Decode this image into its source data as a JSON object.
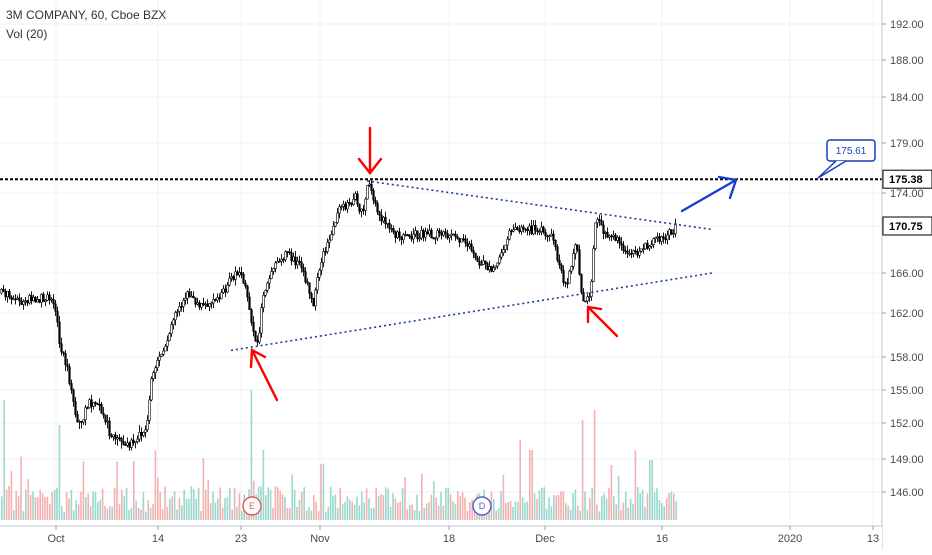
{
  "header": {
    "symbol_line": "3M COMPANY, 60, Cboe BZX",
    "volume_line": "Vol (20)"
  },
  "chart_data": {
    "type": "candlestick",
    "title": "3M COMPANY, 60, Cboe BZX",
    "indicator": "Vol (20)",
    "y_ticks": [
      "192.00",
      "188.00",
      "184.00",
      "179.00",
      "174.00",
      "170.75",
      "166.00",
      "162.00",
      "158.00",
      "155.00",
      "152.00",
      "149.00",
      "146.00"
    ],
    "x_ticks": [
      "Oct",
      "14",
      "23",
      "Nov",
      "18",
      "Dec",
      "16",
      "2020",
      "13"
    ],
    "price_trace": [
      [
        0,
        164.0
      ],
      [
        20,
        163.2
      ],
      [
        45,
        163.6
      ],
      [
        55,
        162.5
      ],
      [
        60,
        158.5
      ],
      [
        66,
        157.5
      ],
      [
        70,
        155.2
      ],
      [
        78,
        151.5
      ],
      [
        90,
        154.0
      ],
      [
        100,
        153.5
      ],
      [
        108,
        151.5
      ],
      [
        115,
        150.6
      ],
      [
        128,
        150.3
      ],
      [
        140,
        151.0
      ],
      [
        146,
        151.5
      ],
      [
        150,
        155.5
      ],
      [
        156,
        157.5
      ],
      [
        166,
        159.5
      ],
      [
        175,
        162.0
      ],
      [
        186,
        164.0
      ],
      [
        200,
        162.5
      ],
      [
        215,
        163.0
      ],
      [
        228,
        165.0
      ],
      [
        240,
        166.2
      ],
      [
        248,
        163.5
      ],
      [
        252,
        160.5
      ],
      [
        257,
        159.0
      ],
      [
        262,
        163.0
      ],
      [
        272,
        166.5
      ],
      [
        285,
        168.0
      ],
      [
        298,
        167.0
      ],
      [
        306,
        165.0
      ],
      [
        313,
        163.0
      ],
      [
        320,
        167.0
      ],
      [
        330,
        170.0
      ],
      [
        340,
        172.5
      ],
      [
        355,
        173.5
      ],
      [
        362,
        172.0
      ],
      [
        368,
        175.2
      ],
      [
        378,
        172.0
      ],
      [
        390,
        170.2
      ],
      [
        405,
        169.5
      ],
      [
        420,
        170.0
      ],
      [
        440,
        169.8
      ],
      [
        458,
        169.5
      ],
      [
        470,
        168.5
      ],
      [
        480,
        167.0
      ],
      [
        490,
        166.5
      ],
      [
        500,
        167.5
      ],
      [
        508,
        170.0
      ],
      [
        522,
        170.5
      ],
      [
        540,
        170.3
      ],
      [
        553,
        169.5
      ],
      [
        560,
        166.0
      ],
      [
        566,
        165.0
      ],
      [
        572,
        167.0
      ],
      [
        576,
        169.5
      ],
      [
        579,
        166.0
      ],
      [
        583,
        163.0
      ],
      [
        590,
        164.0
      ],
      [
        595,
        171.5
      ],
      [
        606,
        170.0
      ],
      [
        615,
        169.5
      ],
      [
        625,
        168.0
      ],
      [
        640,
        168.2
      ],
      [
        650,
        169.2
      ],
      [
        665,
        169.7
      ],
      [
        675,
        170.6
      ]
    ],
    "volume_note": "heavy volume spikes near 23 Oct and early Dec",
    "horizontal_levels": [
      {
        "value": 175.38,
        "label": "175.38",
        "style": "dashed-black"
      }
    ],
    "badges": [
      {
        "value": 170.75,
        "label": "170.75"
      }
    ],
    "callout": {
      "label": "175.61"
    },
    "trendlines": [
      {
        "from": [
          "24 Oct",
          158.6
        ],
        "to": [
          "~21 Dec",
          166.0
        ],
        "style": "dotted-blue",
        "role": "support"
      },
      {
        "from": [
          "6 Nov",
          175.2
        ],
        "to": [
          "~21 Dec",
          170.4
        ],
        "style": "dotted-blue",
        "role": "resistance"
      }
    ],
    "annotations": [
      {
        "type": "arrow",
        "color": "red",
        "direction": "down",
        "at": "peak early Nov"
      },
      {
        "type": "arrow",
        "color": "red",
        "direction": "up-left",
        "at": "low 24 Oct"
      },
      {
        "type": "arrow",
        "color": "red",
        "direction": "up-left",
        "at": "low early Dec"
      },
      {
        "type": "arrow",
        "color": "blue",
        "direction": "up-right",
        "at": "breakout target"
      }
    ],
    "events": [
      {
        "label": "E"
      },
      {
        "label": "D"
      }
    ],
    "grid": true
  },
  "colors": {
    "candle": "#000000",
    "trendline": "#1a3f8f",
    "level": "#000000",
    "callout": "#1a3fb5",
    "annotation_red": "#ff0000",
    "annotation_blue": "#1a3fd0",
    "volume_up": "#90d4c9",
    "volume_down": "#f4a7a7",
    "grid": "#eef0f3",
    "event_earnings": "#e05a5a",
    "event_dividend": "#4a63c6"
  }
}
